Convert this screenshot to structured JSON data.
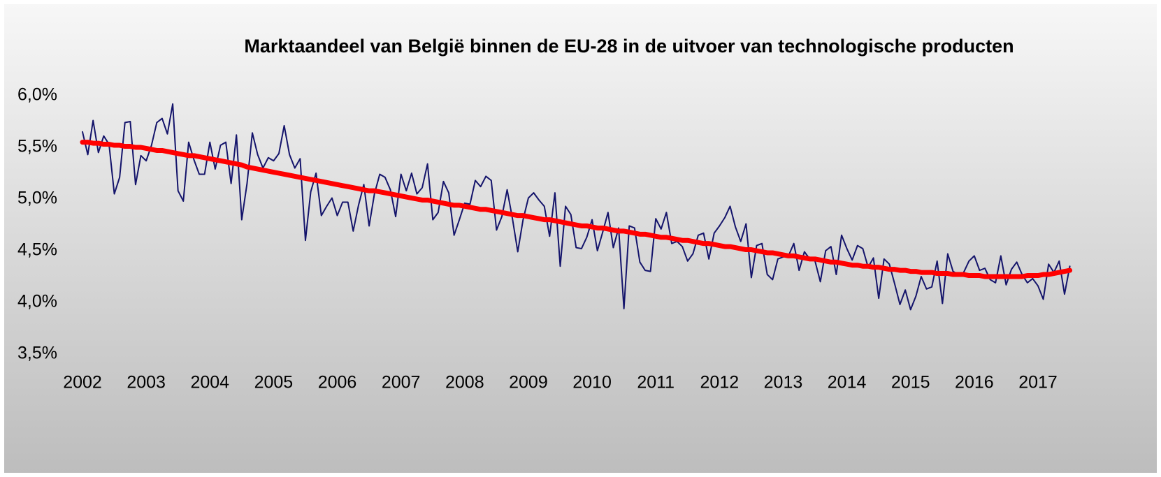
{
  "chart_data": {
    "type": "line",
    "title": "Marktaandeel van België binnen de EU-28 in de uitvoer van technologische producten",
    "categories": [
      "2002",
      null,
      null,
      null,
      null,
      null,
      null,
      null,
      null,
      null,
      null,
      null,
      "2003",
      null,
      null,
      null,
      null,
      null,
      null,
      null,
      null,
      null,
      null,
      null,
      "2004",
      null,
      null,
      null,
      null,
      null,
      null,
      null,
      null,
      null,
      null,
      null,
      "2005",
      null,
      null,
      null,
      null,
      null,
      null,
      null,
      null,
      null,
      null,
      null,
      "2006",
      null,
      null,
      null,
      null,
      null,
      null,
      null,
      null,
      null,
      null,
      null,
      "2007",
      null,
      null,
      null,
      null,
      null,
      null,
      null,
      null,
      null,
      null,
      null,
      "2008",
      null,
      null,
      null,
      null,
      null,
      null,
      null,
      null,
      null,
      null,
      null,
      "2009",
      null,
      null,
      null,
      null,
      null,
      null,
      null,
      null,
      null,
      null,
      null,
      "2010",
      null,
      null,
      null,
      null,
      null,
      null,
      null,
      null,
      null,
      null,
      null,
      "2011",
      null,
      null,
      null,
      null,
      null,
      null,
      null,
      null,
      null,
      null,
      null,
      "2012",
      null,
      null,
      null,
      null,
      null,
      null,
      null,
      null,
      null,
      null,
      null,
      "2013",
      null,
      null,
      null,
      null,
      null,
      null,
      null,
      null,
      null,
      null,
      null,
      "2014",
      null,
      null,
      null,
      null,
      null,
      null,
      null,
      null,
      null,
      null,
      null,
      "2015",
      null,
      null,
      null,
      null,
      null,
      null,
      null,
      null,
      null,
      null,
      null,
      "2016",
      null,
      null,
      null,
      null,
      null,
      null,
      null,
      null,
      null,
      null,
      null,
      "2017",
      null,
      null,
      null,
      null,
      null,
      null
    ],
    "series": [
      {
        "color": "#14146b",
        "width": 2,
        "values": [
          5.65,
          5.43,
          5.76,
          5.45,
          5.61,
          5.53,
          5.05,
          5.21,
          5.74,
          5.75,
          5.14,
          5.42,
          5.37,
          5.52,
          5.74,
          5.78,
          5.63,
          5.92,
          5.08,
          4.98,
          5.55,
          5.38,
          5.24,
          5.24,
          5.55,
          5.29,
          5.52,
          5.55,
          5.15,
          5.62,
          4.8,
          5.15,
          5.64,
          5.43,
          5.3,
          5.4,
          5.37,
          5.44,
          5.71,
          5.43,
          5.3,
          5.39,
          4.6,
          5.07,
          5.25,
          4.84,
          4.93,
          5.01,
          4.84,
          4.97,
          4.97,
          4.69,
          4.94,
          5.14,
          4.74,
          5.05,
          5.24,
          5.21,
          5.09,
          4.83,
          5.24,
          5.08,
          5.25,
          5.05,
          5.11,
          5.34,
          4.8,
          4.87,
          5.17,
          5.06,
          4.65,
          4.8,
          4.96,
          4.95,
          5.18,
          5.12,
          5.22,
          5.18,
          4.7,
          4.83,
          5.09,
          4.81,
          4.49,
          4.8,
          5.01,
          5.06,
          4.99,
          4.93,
          4.64,
          5.06,
          4.35,
          4.93,
          4.85,
          4.53,
          4.52,
          4.63,
          4.8,
          4.5,
          4.68,
          4.87,
          4.53,
          4.72,
          3.94,
          4.74,
          4.72,
          4.39,
          4.31,
          4.3,
          4.81,
          4.71,
          4.87,
          4.57,
          4.59,
          4.54,
          4.4,
          4.47,
          4.65,
          4.67,
          4.42,
          4.67,
          4.74,
          4.82,
          4.93,
          4.73,
          4.59,
          4.76,
          4.24,
          4.55,
          4.57,
          4.27,
          4.22,
          4.42,
          4.44,
          4.45,
          4.57,
          4.31,
          4.49,
          4.42,
          4.4,
          4.2,
          4.5,
          4.54,
          4.27,
          4.65,
          4.52,
          4.41,
          4.55,
          4.52,
          4.34,
          4.43,
          4.04,
          4.42,
          4.37,
          4.18,
          3.98,
          4.12,
          3.93,
          4.06,
          4.25,
          4.13,
          4.15,
          4.4,
          3.99,
          4.47,
          4.3,
          4.27,
          4.29,
          4.4,
          4.45,
          4.31,
          4.33,
          4.22,
          4.19,
          4.45,
          4.17,
          4.32,
          4.39,
          4.27,
          4.19,
          4.23,
          4.16,
          4.03,
          4.37,
          4.29,
          4.4,
          4.08,
          4.35
        ]
      },
      {
        "color": "#ff0000",
        "width": 7,
        "values": [
          5.55,
          5.55,
          5.54,
          5.54,
          5.53,
          5.53,
          5.52,
          5.52,
          5.51,
          5.51,
          5.5,
          5.5,
          5.49,
          5.48,
          5.47,
          5.47,
          5.46,
          5.45,
          5.44,
          5.43,
          5.42,
          5.42,
          5.41,
          5.4,
          5.39,
          5.38,
          5.37,
          5.36,
          5.35,
          5.34,
          5.33,
          5.31,
          5.3,
          5.29,
          5.28,
          5.27,
          5.26,
          5.25,
          5.24,
          5.23,
          5.22,
          5.21,
          5.2,
          5.19,
          5.18,
          5.17,
          5.16,
          5.15,
          5.14,
          5.13,
          5.12,
          5.11,
          5.1,
          5.09,
          5.08,
          5.08,
          5.07,
          5.06,
          5.05,
          5.04,
          5.03,
          5.02,
          5.01,
          5.0,
          4.99,
          4.99,
          4.98,
          4.97,
          4.96,
          4.95,
          4.94,
          4.94,
          4.93,
          4.92,
          4.91,
          4.9,
          4.9,
          4.89,
          4.88,
          4.87,
          4.86,
          4.85,
          4.84,
          4.84,
          4.83,
          4.82,
          4.81,
          4.8,
          4.8,
          4.79,
          4.78,
          4.77,
          4.76,
          4.75,
          4.74,
          4.74,
          4.73,
          4.72,
          4.72,
          4.71,
          4.7,
          4.69,
          4.69,
          4.68,
          4.67,
          4.66,
          4.66,
          4.65,
          4.64,
          4.63,
          4.63,
          4.62,
          4.61,
          4.6,
          4.6,
          4.59,
          4.58,
          4.57,
          4.57,
          4.56,
          4.55,
          4.54,
          4.54,
          4.53,
          4.52,
          4.51,
          4.51,
          4.5,
          4.49,
          4.48,
          4.48,
          4.47,
          4.46,
          4.45,
          4.45,
          4.44,
          4.43,
          4.42,
          4.42,
          4.41,
          4.4,
          4.39,
          4.39,
          4.38,
          4.37,
          4.36,
          4.36,
          4.35,
          4.35,
          4.34,
          4.34,
          4.33,
          4.32,
          4.32,
          4.31,
          4.31,
          4.3,
          4.3,
          4.29,
          4.29,
          4.29,
          4.28,
          4.28,
          4.28,
          4.27,
          4.27,
          4.27,
          4.26,
          4.26,
          4.26,
          4.25,
          4.25,
          4.25,
          4.25,
          4.25,
          4.25,
          4.25,
          4.25,
          4.26,
          4.26,
          4.26,
          4.27,
          4.27,
          4.28,
          4.29,
          4.3,
          4.31
        ]
      }
    ],
    "ylim": [
      3.5,
      6.0
    ],
    "yticks": [
      {
        "value": 3.5,
        "label": "3,5%"
      },
      {
        "value": 4.0,
        "label": "4,0%"
      },
      {
        "value": 4.5,
        "label": "4,5%"
      },
      {
        "value": 5.0,
        "label": "5,0%"
      },
      {
        "value": 5.5,
        "label": "5,5%"
      },
      {
        "value": 6.0,
        "label": "6,0%"
      }
    ],
    "grid": false
  }
}
